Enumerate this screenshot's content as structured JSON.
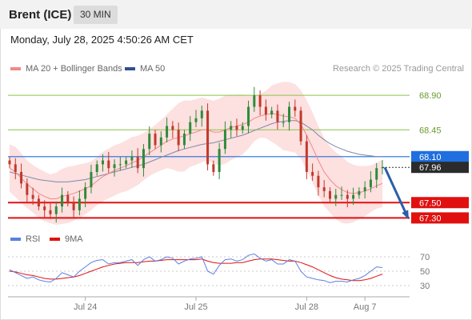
{
  "header": {
    "instrument": "Brent (ICE)",
    "timeframe": "30 MIN"
  },
  "datetime": "Monday, July 28, 2025 4:50:26 AM CET",
  "legend": {
    "ma_boll": {
      "label": "MA 20 + Bollinger Bands",
      "color": "#f08a8a"
    },
    "ma50": {
      "label": "MA 50",
      "color": "#2f4f8f"
    }
  },
  "credit": "Research © 2025 Trading Central",
  "rsi_legend": {
    "rsi": {
      "label": "RSI",
      "color": "#5b7fe0"
    },
    "ma9": {
      "label": "9MA",
      "color": "#e01010"
    }
  },
  "chart_data": {
    "type": "line",
    "price_ylim": [
      67.2,
      69.1
    ],
    "levels": [
      {
        "value": 68.9,
        "label": "68.90",
        "kind": "resistance",
        "color": "#8cc44a"
      },
      {
        "value": 68.45,
        "label": "68.45",
        "kind": "resistance",
        "color": "#8cc44a"
      },
      {
        "value": 68.1,
        "label": "68.10",
        "kind": "pivot",
        "color": "#1f6fe0"
      },
      {
        "value": 67.5,
        "label": "67.50",
        "kind": "support",
        "color": "#e01010"
      },
      {
        "value": 67.3,
        "label": "67.30",
        "kind": "support",
        "color": "#e01010"
      }
    ],
    "last_price": {
      "value": 67.96,
      "label": "67.96"
    },
    "target_arrow": {
      "from": 67.96,
      "to": 67.3
    },
    "close_series": [
      68.0,
      67.9,
      67.75,
      67.6,
      67.55,
      67.45,
      67.4,
      67.35,
      67.45,
      67.6,
      67.5,
      67.4,
      67.55,
      67.7,
      67.9,
      68.0,
      68.05,
      67.95,
      68.0,
      68.0,
      68.05,
      68.1,
      67.95,
      68.2,
      68.4,
      68.25,
      68.35,
      68.5,
      68.45,
      68.25,
      68.4,
      68.55,
      68.6,
      68.7,
      68.0,
      67.9,
      68.2,
      68.45,
      68.5,
      68.45,
      68.5,
      68.75,
      68.9,
      68.75,
      68.65,
      68.7,
      68.55,
      68.55,
      68.75,
      68.7,
      68.3,
      67.9,
      67.85,
      67.7,
      67.65,
      67.55,
      67.6,
      67.6,
      67.55,
      67.6,
      67.65,
      67.7,
      67.8,
      67.95,
      67.96
    ],
    "ma20_series": [
      67.95,
      67.9,
      67.82,
      67.74,
      67.68,
      67.62,
      67.58,
      67.55,
      67.55,
      67.58,
      67.6,
      67.62,
      67.65,
      67.68,
      67.72,
      67.78,
      67.84,
      67.88,
      67.92,
      67.95,
      67.98,
      68.02,
      68.05,
      68.1,
      68.15,
      68.2,
      68.25,
      68.3,
      68.33,
      68.35,
      68.37,
      68.4,
      68.42,
      68.45,
      68.45,
      68.42,
      68.42,
      68.45,
      68.48,
      68.5,
      68.52,
      68.55,
      68.6,
      68.63,
      68.65,
      68.66,
      68.65,
      68.63,
      68.62,
      68.6,
      68.52,
      68.38,
      68.22,
      68.05,
      67.9,
      67.8,
      67.72,
      67.67,
      67.63,
      67.62,
      67.63,
      67.65,
      67.68,
      67.72,
      67.75
    ],
    "ma50_series": [
      67.9,
      67.88,
      67.86,
      67.84,
      67.82,
      67.8,
      67.79,
      67.78,
      67.77,
      67.77,
      67.77,
      67.78,
      67.79,
      67.8,
      67.82,
      67.84,
      67.86,
      67.88,
      67.9,
      67.92,
      67.94,
      67.96,
      67.98,
      68.0,
      68.03,
      68.06,
      68.09,
      68.12,
      68.15,
      68.18,
      68.2,
      68.22,
      68.24,
      68.26,
      68.27,
      68.28,
      68.3,
      68.32,
      68.34,
      68.36,
      68.38,
      68.41,
      68.44,
      68.47,
      68.5,
      68.53,
      68.55,
      68.56,
      68.57,
      68.57,
      68.55,
      68.5,
      68.45,
      68.38,
      68.32,
      68.27,
      68.23,
      68.2,
      68.17,
      68.15,
      68.13,
      68.12,
      68.11,
      68.1,
      68.1
    ],
    "rsi_ylim": [
      20,
      80
    ],
    "rsi_ticks": [
      30,
      50,
      70
    ],
    "rsi_series": [
      52,
      48,
      44,
      40,
      42,
      38,
      36,
      35,
      40,
      48,
      45,
      42,
      50,
      56,
      62,
      65,
      66,
      60,
      62,
      62,
      64,
      66,
      58,
      66,
      70,
      64,
      66,
      70,
      68,
      60,
      64,
      67,
      68,
      70,
      50,
      46,
      58,
      66,
      67,
      64,
      66,
      72,
      74,
      68,
      64,
      66,
      60,
      60,
      66,
      64,
      50,
      42,
      40,
      38,
      37,
      34,
      36,
      36,
      35,
      38,
      40,
      44,
      50,
      56,
      55
    ],
    "ma9_series": [
      50,
      49,
      47,
      45,
      44,
      42,
      40,
      39,
      39,
      40,
      41,
      42,
      44,
      47,
      50,
      53,
      56,
      58,
      60,
      61,
      62,
      62,
      62,
      63,
      64,
      64,
      65,
      66,
      66,
      66,
      66,
      66,
      66,
      67,
      64,
      62,
      61,
      61,
      61,
      62,
      62,
      64,
      66,
      67,
      67,
      67,
      66,
      65,
      64,
      64,
      62,
      59,
      56,
      52,
      48,
      44,
      41,
      39,
      38,
      37,
      37,
      38,
      40,
      43,
      46
    ],
    "x_ticks": [
      {
        "index": 13,
        "label": "Jul 24"
      },
      {
        "index": 32,
        "label": "Jul 25"
      },
      {
        "index": 51,
        "label": "Jul 28"
      },
      {
        "index": 61,
        "label": "Aug 7"
      }
    ]
  }
}
